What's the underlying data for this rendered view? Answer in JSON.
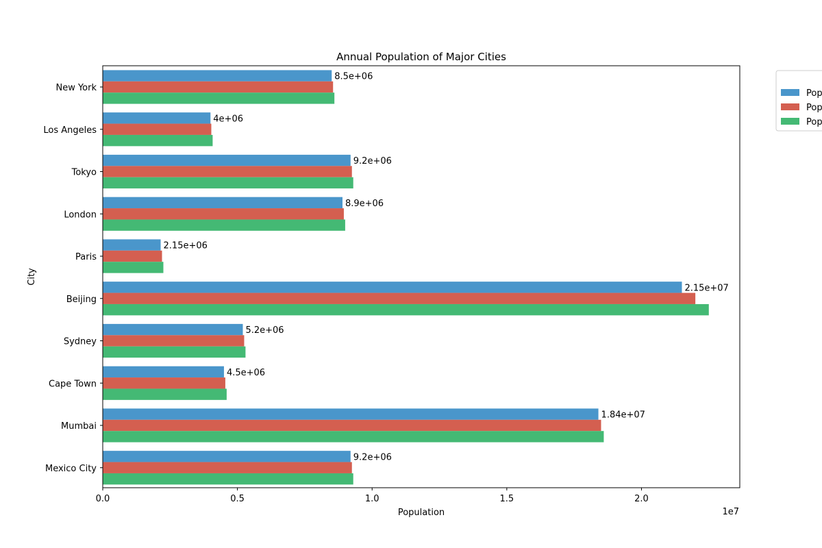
{
  "chart_data": {
    "type": "bar",
    "orientation": "horizontal",
    "title": "Annual Population of Major Cities",
    "xlabel": "Population",
    "ylabel": "City",
    "x_offset_text": "1e7",
    "xlim": [
      0,
      23650000
    ],
    "xticks": [
      0,
      5000000,
      10000000,
      15000000,
      20000000
    ],
    "xtick_labels": [
      "0.0",
      "0.5",
      "1.0",
      "1.5",
      "2.0"
    ],
    "categories": [
      "New York",
      "Los Angeles",
      "Tokyo",
      "London",
      "Paris",
      "Beijing",
      "Sydney",
      "Cape Town",
      "Mumbai",
      "Mexico City"
    ],
    "series": [
      {
        "legend_text": "Pop",
        "color": "#4a96cb",
        "values": [
          8500000,
          4000000,
          9200000,
          8900000,
          2150000,
          21500000,
          5200000,
          4500000,
          18400000,
          9200000
        ]
      },
      {
        "legend_text": "Pop",
        "color": "#d45f50",
        "values": [
          8550000,
          4030000,
          9250000,
          8950000,
          2200000,
          22000000,
          5250000,
          4550000,
          18500000,
          9250000
        ]
      },
      {
        "legend_text": "Pop",
        "color": "#44b974",
        "values": [
          8600000,
          4080000,
          9300000,
          9000000,
          2250000,
          22500000,
          5300000,
          4600000,
          18600000,
          9300000
        ]
      }
    ],
    "data_labels": [
      "8.5e+06",
      "4e+06",
      "9.2e+06",
      "8.9e+06",
      "2.15e+06",
      "2.15e+07",
      "5.2e+06",
      "4.5e+06",
      "1.84e+07",
      "9.2e+06"
    ],
    "legend_position": "upper-right-outside",
    "grid": false
  }
}
